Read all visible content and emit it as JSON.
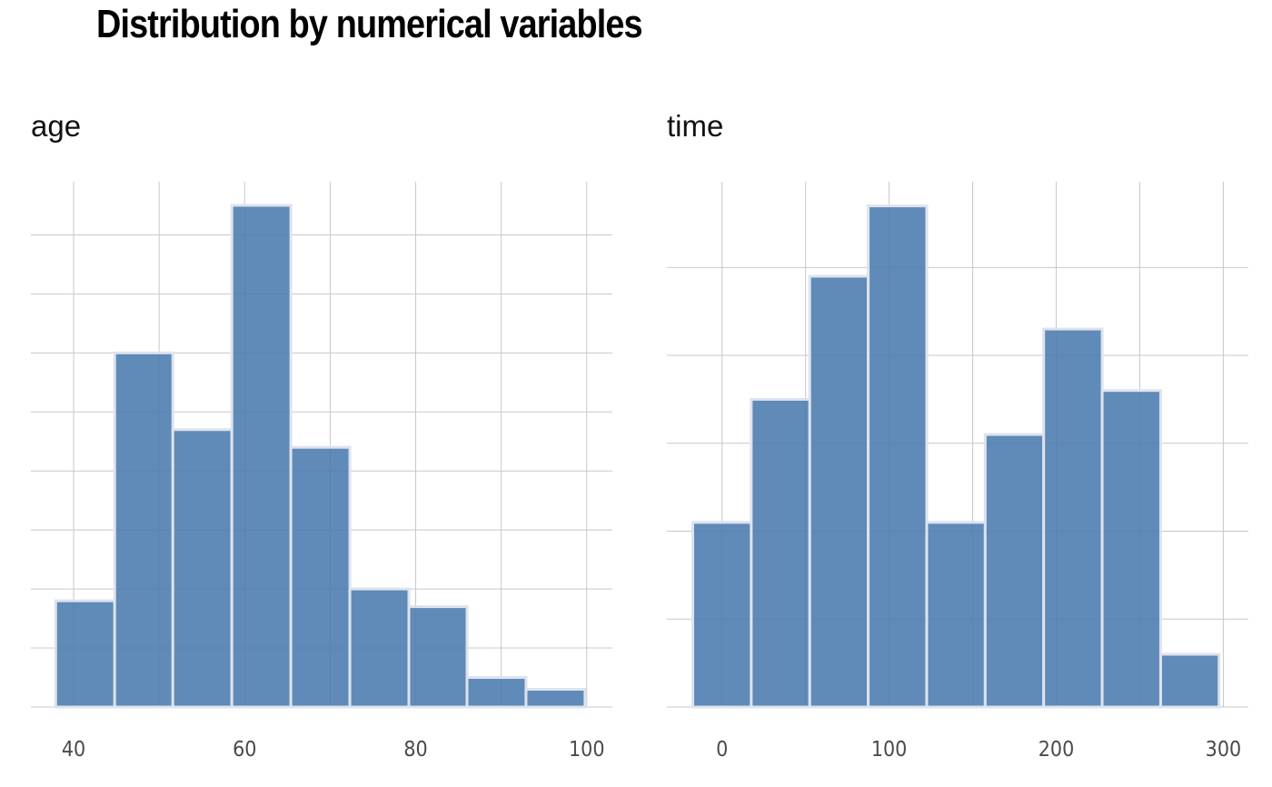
{
  "title": "Distribution by numerical variables",
  "colors": {
    "bar_fill": "#4a7aad",
    "bar_stroke": "#dde3ee",
    "grid": "#c8c8c8"
  },
  "chart_data": [
    {
      "type": "bar",
      "title": "age",
      "xlabel": "",
      "ylabel": "",
      "bins": [
        {
          "start": 37.9,
          "end": 44.8,
          "count": 9
        },
        {
          "start": 44.8,
          "end": 51.6,
          "count": 30
        },
        {
          "start": 51.6,
          "end": 58.5,
          "count": 23.5
        },
        {
          "start": 58.5,
          "end": 65.4,
          "count": 42.5
        },
        {
          "start": 65.4,
          "end": 72.3,
          "count": 22
        },
        {
          "start": 72.3,
          "end": 79.2,
          "count": 10
        },
        {
          "start": 79.2,
          "end": 86.0,
          "count": 8.5
        },
        {
          "start": 86.0,
          "end": 92.9,
          "count": 2.5
        },
        {
          "start": 92.9,
          "end": 99.8,
          "count": 1.5
        }
      ],
      "xlim": [
        35,
        103
      ],
      "ylim": [
        0,
        44.5
      ],
      "x_major_ticks": [
        40,
        60,
        80,
        100
      ],
      "x_minor_ticks": [
        50,
        70,
        90
      ],
      "tick_labels": [
        "40",
        "60",
        "80",
        "100"
      ],
      "y_grid": [
        5,
        10,
        15,
        20,
        25,
        30,
        35,
        40
      ]
    },
    {
      "type": "bar",
      "title": "time",
      "xlabel": "",
      "ylabel": "",
      "bins": [
        {
          "start": -17.5,
          "end": 17.5,
          "count": 4.2
        },
        {
          "start": 17.5,
          "end": 52.5,
          "count": 7
        },
        {
          "start": 52.5,
          "end": 87.5,
          "count": 9.8
        },
        {
          "start": 87.5,
          "end": 122.5,
          "count": 11.4
        },
        {
          "start": 122.5,
          "end": 157.5,
          "count": 4.2
        },
        {
          "start": 157.5,
          "end": 192.5,
          "count": 6.2
        },
        {
          "start": 192.5,
          "end": 227.5,
          "count": 8.6
        },
        {
          "start": 227.5,
          "end": 262.5,
          "count": 7.2
        },
        {
          "start": 262.5,
          "end": 297.5,
          "count": 1.2
        }
      ],
      "xlim": [
        -33,
        315
      ],
      "ylim": [
        0,
        11.95
      ],
      "x_major_ticks": [
        0,
        100,
        200,
        300
      ],
      "x_minor_ticks": [
        50,
        150,
        250
      ],
      "tick_labels": [
        "0",
        "100",
        "200",
        "300"
      ],
      "y_grid": [
        2,
        4,
        6,
        8,
        10
      ]
    }
  ]
}
